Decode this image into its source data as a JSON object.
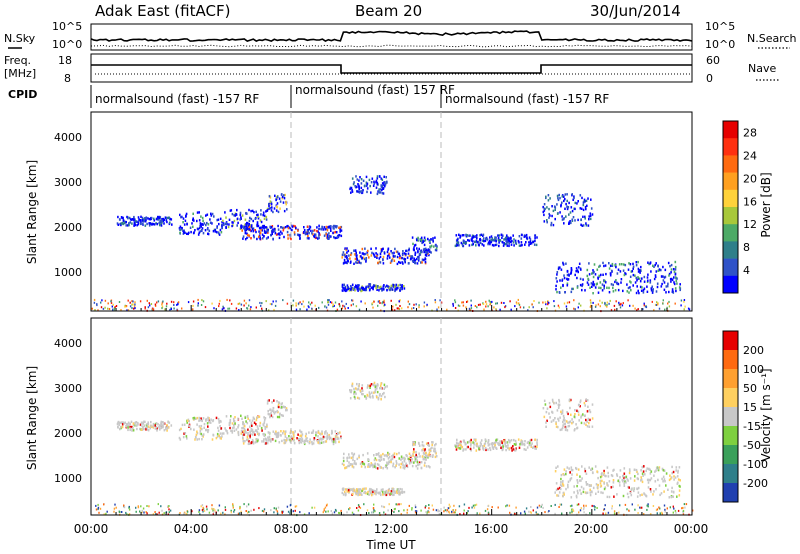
{
  "header": {
    "radar": "Adak East (fitACF)",
    "beam": "Beam 20",
    "date": "30/Jun/2014"
  },
  "noise_panel": {
    "left_label": "N.Sky",
    "right_label": "N.Search",
    "y_top": "10^5",
    "y_bottom": "10^0",
    "y_top_right": "10^5",
    "y_bottom_right": "10^0"
  },
  "freq_panel": {
    "left_label_line1": "Freq.",
    "left_label_line2": "[MHz]",
    "right_label": "Nave",
    "y_left_top": "18",
    "y_left_bottom": "8",
    "y_right_top": "60",
    "y_right_bottom": "0"
  },
  "cpid": {
    "label": "CPID",
    "segments": [
      {
        "start_hour": 0,
        "text": "normalsound (fast) -157 RF"
      },
      {
        "start_hour": 8,
        "text": "normalsound (fast) 157 RF"
      },
      {
        "start_hour": 14,
        "text": "normalsound (fast) -157 RF"
      }
    ]
  },
  "power_panel": {
    "ylabel": "Slant Range [km]",
    "y_ticks": [
      "1000",
      "2000",
      "3000",
      "4000"
    ],
    "colorbar_label": "Power [dB]",
    "colorbar_ticks": [
      "4",
      "8",
      "12",
      "16",
      "20",
      "24",
      "28"
    ],
    "colorbar_colors": [
      "#0000ff",
      "#2f52c8",
      "#2f7f8a",
      "#4daa66",
      "#a8c83a",
      "#ffd23a",
      "#ffa020",
      "#ff6a10",
      "#ff3010",
      "#e60000"
    ]
  },
  "velocity_panel": {
    "ylabel": "Slant Range [km]",
    "y_ticks": [
      "1000",
      "2000",
      "3000",
      "4000"
    ],
    "colorbar_label": "Velocity [m s⁻¹]",
    "colorbar_ticks": [
      "200",
      "100",
      "50",
      "15",
      "-15",
      "-50",
      "-100",
      "-200"
    ],
    "colorbar_colors": [
      "#2040b0",
      "#2f7f8a",
      "#3aa05a",
      "#7ed040",
      "#c8c8c8",
      "#ffd060",
      "#ffa030",
      "#ff6a10",
      "#e60000"
    ]
  },
  "x_axis": {
    "label": "Time UT",
    "tick_labels": [
      "00:00",
      "04:00",
      "08:00",
      "12:00",
      "16:00",
      "20:00",
      "00:00"
    ]
  },
  "chart_data": {
    "type": "heatmap",
    "title": "Adak East (fitACF)  Beam 20  30/Jun/2014",
    "xlabel": "Time UT",
    "ylabel": "Slant Range [km]",
    "xlim_hours": [
      0,
      24
    ],
    "ylim_km": [
      180,
      4600
    ],
    "series": [
      {
        "name": "Power [dB]",
        "colorbar_range": [
          0,
          30
        ]
      },
      {
        "name": "Velocity [m s⁻¹]",
        "colorbar_range": [
          -200,
          200
        ]
      }
    ],
    "echo_bands_km": [
      {
        "t0": 1.0,
        "t1": 3.2,
        "r0": 2100,
        "r1": 2300,
        "level": 3
      },
      {
        "t0": 3.5,
        "t1": 5.2,
        "r0": 1900,
        "r1": 2400,
        "level": 4
      },
      {
        "t0": 5.2,
        "t1": 7.0,
        "r0": 2000,
        "r1": 2450,
        "level": 5
      },
      {
        "t0": 6.0,
        "t1": 10.0,
        "r0": 1800,
        "r1": 2100,
        "level": 9
      },
      {
        "t0": 7.0,
        "t1": 7.8,
        "r0": 2400,
        "r1": 2800,
        "level": 6
      },
      {
        "t0": 10.0,
        "t1": 13.5,
        "r0": 1250,
        "r1": 1600,
        "level": 8
      },
      {
        "t0": 12.8,
        "t1": 13.8,
        "r0": 1500,
        "r1": 1850,
        "level": 4
      },
      {
        "t0": 10.0,
        "t1": 12.5,
        "r0": 650,
        "r1": 800,
        "level": 5
      },
      {
        "t0": 10.3,
        "t1": 11.8,
        "r0": 2800,
        "r1": 3200,
        "level": 3
      },
      {
        "t0": 14.5,
        "t1": 17.8,
        "r0": 1650,
        "r1": 1900,
        "level": 3
      },
      {
        "t0": 18.0,
        "t1": 20.0,
        "r0": 2100,
        "r1": 2800,
        "level": 3
      },
      {
        "t0": 18.5,
        "t1": 23.5,
        "r0": 600,
        "r1": 1300,
        "level": 4
      }
    ]
  }
}
